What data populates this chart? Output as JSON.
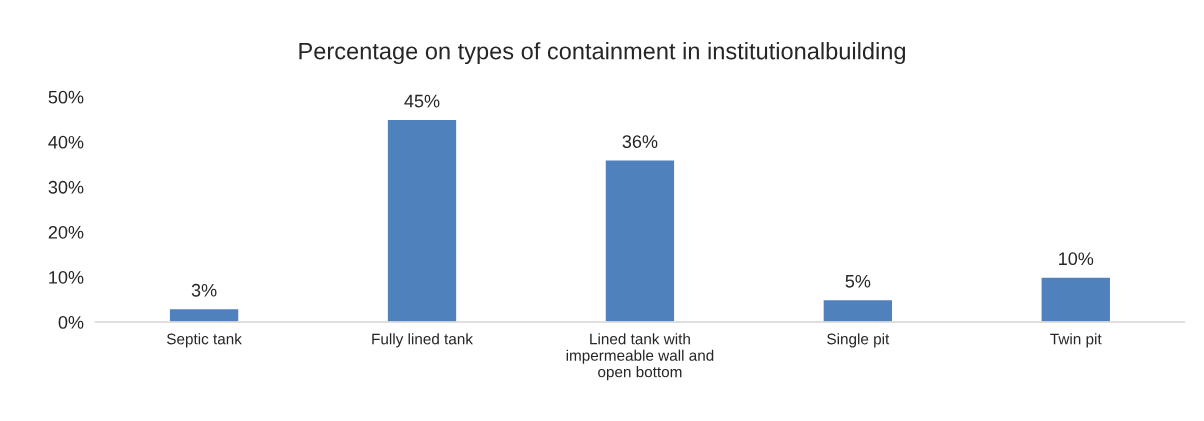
{
  "chart_data": {
    "type": "bar",
    "title": "Percentage on types of containment in institutionalbuilding",
    "categories": [
      "Septic tank",
      "Fully lined tank",
      "Lined tank with\nimpermeable wall and\nopen bottom",
      "Single pit",
      "Twin pit"
    ],
    "values": [
      3,
      45,
      36,
      5,
      10
    ],
    "value_labels": [
      "3%",
      "45%",
      "36%",
      "5%",
      "10%"
    ],
    "color": "#4f81bd",
    "ylim": [
      0,
      50
    ],
    "yticks": [
      {
        "value": 0,
        "label": "0%"
      },
      {
        "value": 10,
        "label": "10%"
      },
      {
        "value": 20,
        "label": "20%"
      },
      {
        "value": 30,
        "label": "30%"
      },
      {
        "value": 40,
        "label": "40%"
      },
      {
        "value": 50,
        "label": "50%"
      }
    ],
    "grid": false
  }
}
